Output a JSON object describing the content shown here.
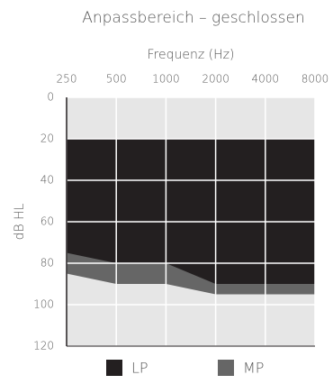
{
  "chart_data": {
    "type": "range-area",
    "title": "Anpassbereich – geschlossen",
    "xlabel": "Frequenz (Hz)",
    "ylabel": "dB HL",
    "x": [
      250,
      500,
      1000,
      2000,
      4000,
      8000
    ],
    "xlim": [
      250,
      8000
    ],
    "xticks": [
      250,
      500,
      1000,
      2000,
      4000,
      8000
    ],
    "xscale": "log",
    "ylim": [
      0,
      120
    ],
    "yticks": [
      0,
      20,
      40,
      60,
      80,
      100,
      120
    ],
    "yinverted": true,
    "grid": true,
    "legend": "bottom",
    "series": [
      {
        "name": "MP",
        "color": "#666666",
        "upper": [
          20,
          20,
          20,
          20,
          20,
          20
        ],
        "values": [
          85,
          90,
          90,
          95,
          95,
          95
        ]
      },
      {
        "name": "LP",
        "color": "#231f20",
        "upper": [
          20,
          20,
          20,
          20,
          20,
          20
        ],
        "values": [
          75,
          80,
          80,
          90,
          90,
          90
        ]
      }
    ]
  }
}
